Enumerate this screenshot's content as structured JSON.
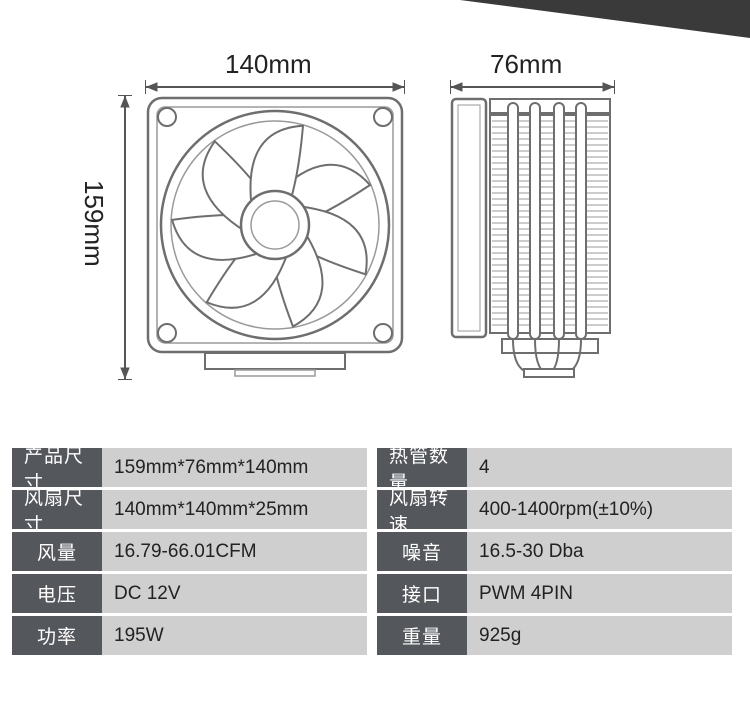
{
  "dimensions": {
    "width_label": "140mm",
    "depth_label": "76mm",
    "height_label": "159mm"
  },
  "diagram_style": {
    "stroke": "#6e6e6e",
    "stroke_light": "#9a9a9a",
    "stroke_width": 2,
    "fill": "#ffffff"
  },
  "specs": [
    {
      "label": "产品尺寸",
      "value": "159mm*76mm*140mm"
    },
    {
      "label": "热管数量",
      "value": "4"
    },
    {
      "label": "风扇尺寸",
      "value": "140mm*140mm*25mm"
    },
    {
      "label": "风扇转速",
      "value": "400-1400rpm(±10%)"
    },
    {
      "label": "风量",
      "value": "16.79-66.01CFM"
    },
    {
      "label": "噪音",
      "value": "16.5-30 Dba"
    },
    {
      "label": "电压",
      "value": "DC 12V"
    },
    {
      "label": "接口",
      "value": "PWM 4PIN"
    },
    {
      "label": "功率",
      "value": "195W"
    },
    {
      "label": "重量",
      "value": "925g"
    }
  ],
  "colors": {
    "corner": "#3a3a3a",
    "spec_label_bg": "#54575c",
    "spec_label_fg": "#ffffff",
    "spec_value_bg": "#cfcfcf",
    "spec_value_fg": "#222222"
  }
}
